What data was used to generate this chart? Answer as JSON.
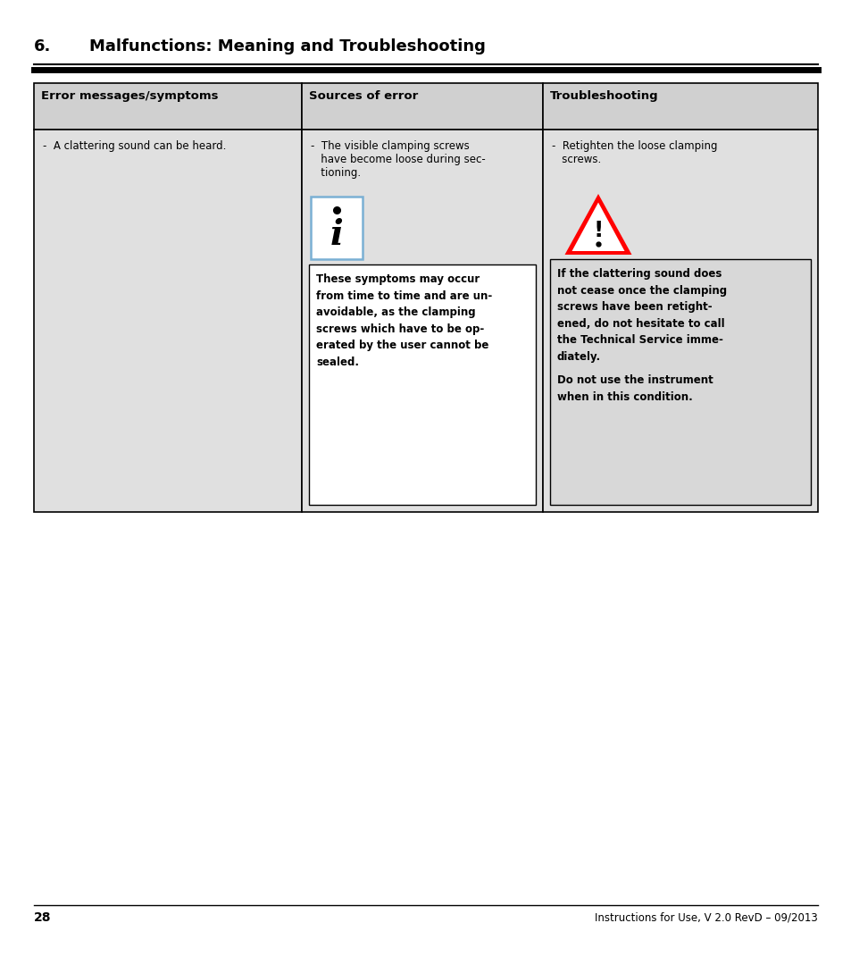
{
  "title_num": "6.",
  "title_text": "Malfunctions: Meaning and Troubleshooting",
  "bg_color": "#ffffff",
  "header_bg": "#d0d0d0",
  "cell_bg": "#e0e0e0",
  "box_bg": "#d8d8d8",
  "page_number": "28",
  "footer_text": "Instructions for Use, V 2.0 RevD – 09/2013",
  "col_headers": [
    "Error messages/symptoms",
    "Sources of error",
    "Troubleshooting"
  ],
  "error_msg": "-  A clattering sound can be heard.",
  "source_line1": "-  The visible clamping screws",
  "source_line2": "   have become loose during sec-",
  "source_line3": "   tioning.",
  "source_note_lines": [
    "These symptoms may occur",
    "from time to time and are un-",
    "avoidable, as the clamping",
    "screws which have to be op-",
    "erated by the user cannot be",
    "sealed."
  ],
  "trouble_line1": "-  Retighten the loose clamping",
  "trouble_line2": "   screws.",
  "trouble_note_lines1": [
    "If the clattering sound does",
    "not cease once the clamping",
    "screws have been retight-",
    "ened, do not hesitate to call",
    "the Technical Service imme-",
    "diately."
  ],
  "trouble_note_lines2": [
    "Do not use the instrument",
    "when in this condition."
  ]
}
